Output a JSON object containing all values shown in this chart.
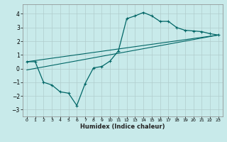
{
  "title": "",
  "xlabel": "Humidex (Indice chaleur)",
  "ylabel": "",
  "bg_color": "#c8eaea",
  "grid_color": "#b0cccc",
  "line_color": "#006666",
  "xlim": [
    -0.5,
    23.5
  ],
  "ylim": [
    -3.5,
    4.7
  ],
  "xticks": [
    0,
    1,
    2,
    3,
    4,
    5,
    6,
    7,
    8,
    9,
    10,
    11,
    12,
    13,
    14,
    15,
    16,
    17,
    18,
    19,
    20,
    21,
    22,
    23
  ],
  "yticks": [
    -3,
    -2,
    -1,
    0,
    1,
    2,
    3,
    4
  ],
  "curve1_x": [
    0,
    1,
    2,
    3,
    4,
    5,
    6,
    7,
    8,
    9,
    10,
    11,
    12,
    13,
    14,
    15,
    16,
    17,
    18,
    19,
    20,
    21,
    22,
    23
  ],
  "curve1_y": [
    0.5,
    0.5,
    -1.0,
    -1.2,
    -1.7,
    -1.8,
    -2.7,
    -1.1,
    0.05,
    0.15,
    0.55,
    1.3,
    3.65,
    3.85,
    4.1,
    3.85,
    3.45,
    3.45,
    3.0,
    2.8,
    2.75,
    2.7,
    2.55,
    2.45
  ],
  "curve2_x": [
    0,
    23
  ],
  "curve2_y": [
    0.5,
    2.45
  ],
  "curve3_x": [
    0,
    23
  ],
  "curve3_y": [
    -0.1,
    2.45
  ]
}
